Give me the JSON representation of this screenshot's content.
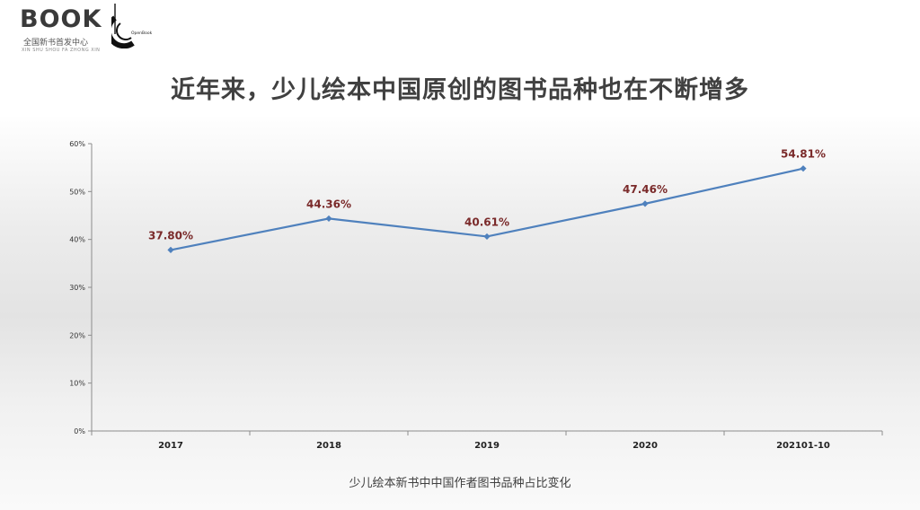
{
  "branding": {
    "logo_text": "BOOK",
    "logo_subtitle": "全国新书首发中心",
    "logo_subtitle_en": "XIN SHU SHOU FA ZHONG XIN",
    "mark_label": "OpenBook"
  },
  "title": "近年来，少儿绘本中国原创的图书品种也在不断增多",
  "caption": "少儿绘本新书中中国作者图书品种占比变化",
  "chart_data": {
    "type": "line",
    "categories": [
      "2017",
      "2018",
      "2019",
      "2020",
      "202101-10"
    ],
    "series": [
      {
        "values": [
          37.8,
          44.36,
          40.61,
          47.46,
          54.81
        ],
        "labels": [
          "37.80%",
          "44.36%",
          "40.61%",
          "47.46%",
          "54.81%"
        ],
        "color": "#4f81bd"
      }
    ],
    "y_ticks": [
      "0%",
      "10%",
      "20%",
      "30%",
      "40%",
      "50%",
      "60%"
    ],
    "ylim": [
      0,
      60
    ],
    "grid": false,
    "legend": "none",
    "label_color": "#7a2a2a"
  }
}
